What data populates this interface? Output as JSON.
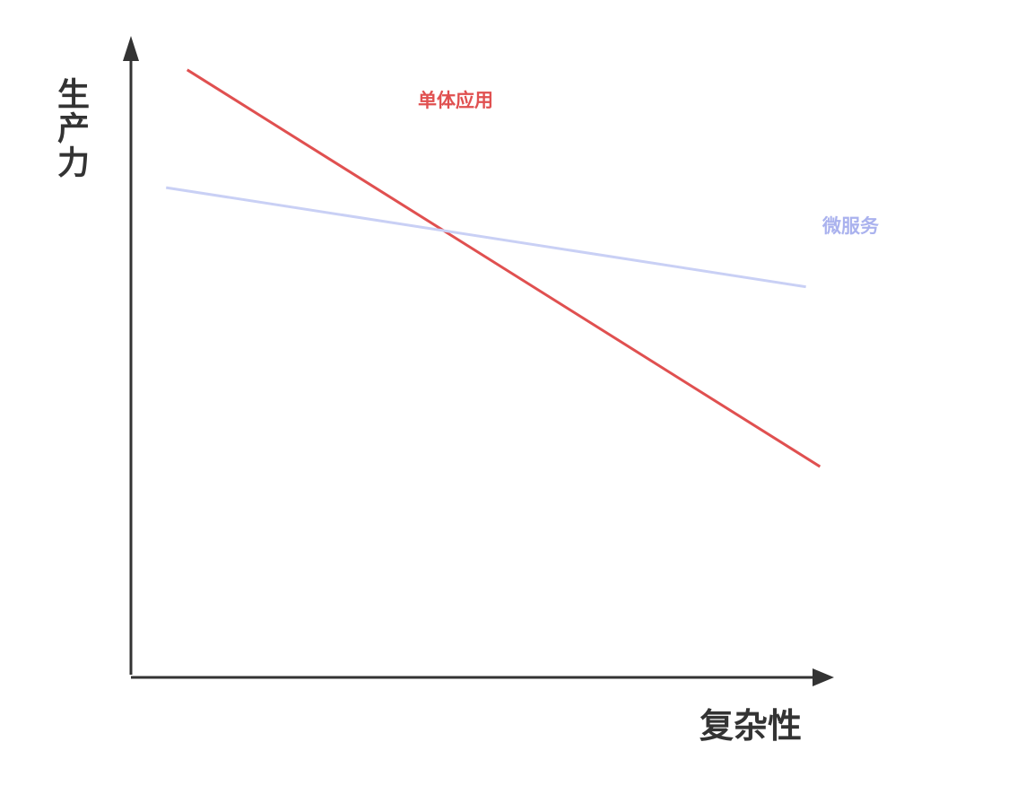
{
  "chart_data": {
    "type": "line",
    "title": "",
    "xlabel": "复杂性",
    "ylabel": "生产力",
    "grid": false,
    "legend": "inline labels",
    "xlim": [
      0,
      10
    ],
    "ylim": [
      0,
      10
    ],
    "series": [
      {
        "name": "单体应用",
        "color": "#e05050",
        "points": [
          [
            0.8,
            9.8
          ],
          [
            9.8,
            3.4
          ]
        ]
      },
      {
        "name": "微服务",
        "color": "#c9d0f5",
        "label_color": "#aab2ee",
        "points": [
          [
            0.5,
            7.9
          ],
          [
            9.6,
            6.3
          ]
        ]
      }
    ]
  }
}
